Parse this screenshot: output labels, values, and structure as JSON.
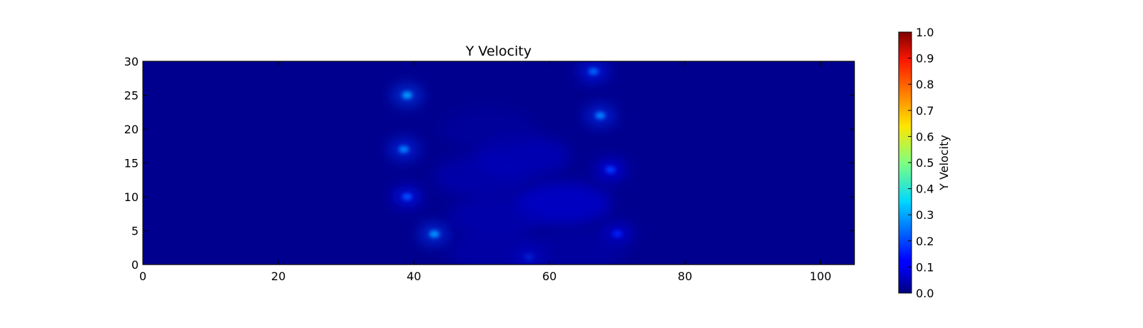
{
  "chart_data": {
    "type": "heatmap",
    "title": "Y Velocity",
    "xlabel": "",
    "ylabel": "",
    "xlim": [
      0,
      105
    ],
    "ylim": [
      0,
      30
    ],
    "xticks": [
      0,
      20,
      40,
      60,
      80,
      100
    ],
    "yticks": [
      0,
      5,
      10,
      15,
      20,
      25,
      30
    ],
    "colorbar": {
      "label": "Y Velocity",
      "range": [
        0.0,
        1.0
      ],
      "ticks": [
        "0.0",
        "0.1",
        "0.2",
        "0.3",
        "0.4",
        "0.5",
        "0.6",
        "0.7",
        "0.8",
        "0.9",
        "1.0"
      ],
      "colormap": "jet"
    },
    "background_value": 0.0,
    "features": [
      {
        "x": 39.0,
        "y": 25.0,
        "value": 0.28
      },
      {
        "x": 38.5,
        "y": 17.0,
        "value": 0.25
      },
      {
        "x": 39.0,
        "y": 10.0,
        "value": 0.2
      },
      {
        "x": 43.0,
        "y": 4.5,
        "value": 0.27
      },
      {
        "x": 57.0,
        "y": 1.2,
        "value": 0.2
      },
      {
        "x": 66.5,
        "y": 28.5,
        "value": 0.22
      },
      {
        "x": 67.5,
        "y": 22.0,
        "value": 0.25
      },
      {
        "x": 69.0,
        "y": 14.0,
        "value": 0.18
      },
      {
        "x": 70.0,
        "y": 4.5,
        "value": 0.16
      },
      {
        "x": 56.0,
        "y": 16.0,
        "value": 0.1
      },
      {
        "x": 62.0,
        "y": 9.0,
        "value": 0.14
      },
      {
        "x": 50.0,
        "y": 13.0,
        "value": 0.08
      },
      {
        "x": 52.0,
        "y": 7.0,
        "value": 0.08
      },
      {
        "x": 52.0,
        "y": 2.0,
        "value": 0.07
      },
      {
        "x": 64.0,
        "y": 2.0,
        "value": 0.06
      },
      {
        "x": 51.0,
        "y": 20.0,
        "value": 0.05
      }
    ]
  }
}
